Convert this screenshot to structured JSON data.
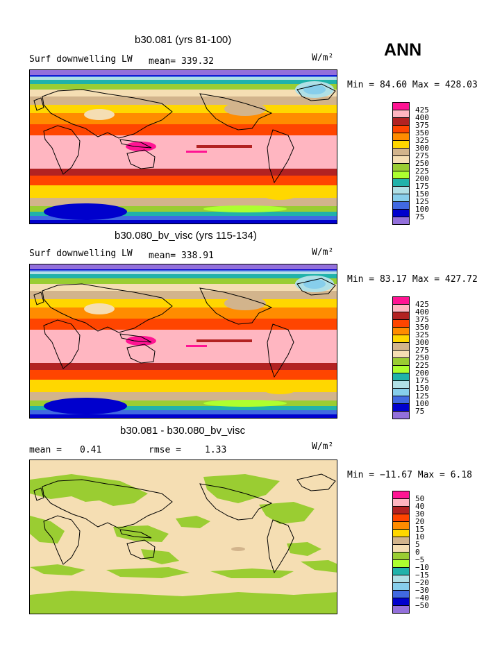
{
  "season": "ANN",
  "units": "W/m²",
  "chart_data": [
    {
      "type": "heatmap",
      "title": "b30.081 (yrs 81-100)",
      "variable": "Surf downwelling LW",
      "stat_text": "mean= 339.32",
      "units": "W/m²",
      "minmax_text": "Min =  84.60 Max = 428.03",
      "min": 84.6,
      "max": 428.03,
      "levels": [
        "425",
        "400",
        "375",
        "350",
        "325",
        "300",
        "275",
        "250",
        "225",
        "200",
        "175",
        "150",
        "125",
        "100",
        "75"
      ],
      "colors": [
        "#ff1493",
        "#ffb6c1",
        "#b22222",
        "#ff4500",
        "#ff8c00",
        "#ffd700",
        "#d2b48c",
        "#f5deb3",
        "#9acd32",
        "#adff2f",
        "#20b2aa",
        "#b0e0e6",
        "#87ceeb",
        "#4169e1",
        "#0000cd",
        "#9370db"
      ],
      "field": "full"
    },
    {
      "type": "heatmap",
      "title": "b30.080_bv_visc (yrs 115-134)",
      "variable": "Surf downwelling LW",
      "stat_text": "mean= 338.91",
      "units": "W/m²",
      "minmax_text": "Min =  83.17 Max = 427.72",
      "min": 83.17,
      "max": 427.72,
      "levels": [
        "425",
        "400",
        "375",
        "350",
        "325",
        "300",
        "275",
        "250",
        "225",
        "200",
        "175",
        "150",
        "125",
        "100",
        "75"
      ],
      "colors": [
        "#ff1493",
        "#ffb6c1",
        "#b22222",
        "#ff4500",
        "#ff8c00",
        "#ffd700",
        "#d2b48c",
        "#f5deb3",
        "#9acd32",
        "#adff2f",
        "#20b2aa",
        "#b0e0e6",
        "#87ceeb",
        "#4169e1",
        "#0000cd",
        "#9370db"
      ],
      "field": "full"
    },
    {
      "type": "heatmap",
      "title": "b30.081 - b30.080_bv_visc",
      "mean_label": "mean =",
      "mean_value": "0.41",
      "rmse_label": "rmse =",
      "rmse_value": "1.33",
      "units": "W/m²",
      "minmax_text": "Min = −11.67 Max =    6.18",
      "min": -11.67,
      "max": 6.18,
      "levels": [
        "50",
        "40",
        "30",
        "20",
        "15",
        "10",
        "5",
        "0",
        "−5",
        "−10",
        "−15",
        "−20",
        "−30",
        "−40",
        "−50"
      ],
      "colors": [
        "#ff1493",
        "#ffb6c1",
        "#b22222",
        "#ff4500",
        "#ff8c00",
        "#ffd700",
        "#d2b48c",
        "#f5deb3",
        "#9acd32",
        "#adff2f",
        "#20b2aa",
        "#b0e0e6",
        "#87ceeb",
        "#4169e1",
        "#0000cd",
        "#9370db"
      ],
      "field": "diff"
    }
  ]
}
